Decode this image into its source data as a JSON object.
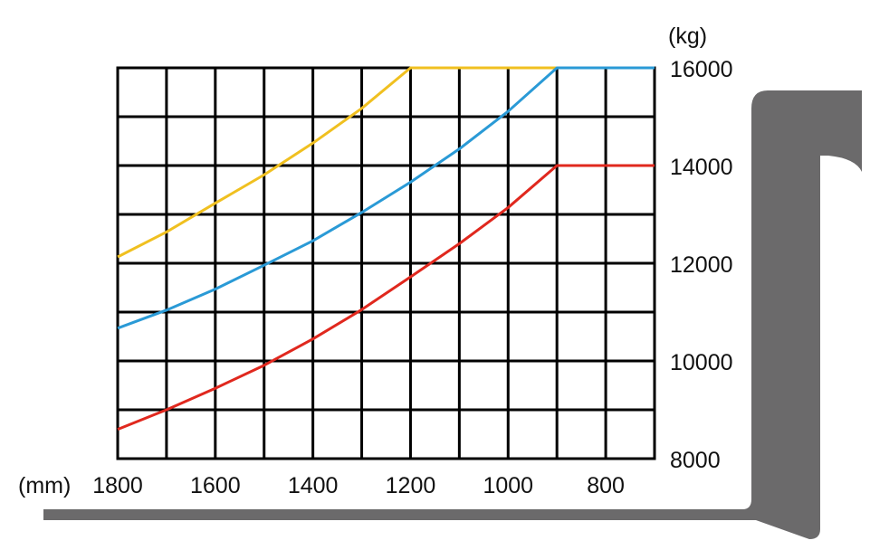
{
  "chart_data": {
    "type": "line",
    "title": "",
    "xlabel": "(mm)",
    "ylabel": "(kg)",
    "xlim": [
      1800,
      700
    ],
    "ylim": [
      8000,
      16000
    ],
    "x_ticks": [
      1800,
      1600,
      1400,
      1200,
      1000,
      800
    ],
    "y_ticks": [
      8000,
      10000,
      12000,
      14000,
      16000
    ],
    "x_grid_step": 100,
    "y_grid_step": 1000,
    "grid": true,
    "x": [
      1800,
      1700,
      1600,
      1500,
      1400,
      1300,
      1200,
      1100,
      1000,
      900,
      800,
      700
    ],
    "series": [
      {
        "name": "yellow",
        "color": "#f0c020",
        "values": [
          12130,
          12640,
          13230,
          13810,
          14460,
          15170,
          16000,
          16000,
          16000,
          16000,
          16000,
          16000
        ]
      },
      {
        "name": "blue",
        "color": "#2a9ad6",
        "values": [
          10670,
          11040,
          11470,
          11960,
          12460,
          13040,
          13660,
          14340,
          15110,
          16000,
          16000,
          16000
        ]
      },
      {
        "name": "red",
        "color": "#e0281e",
        "values": [
          8600,
          9000,
          9440,
          9910,
          10450,
          11050,
          11720,
          12400,
          13140,
          14000,
          14000,
          14000
        ]
      }
    ],
    "legend": "none",
    "decoration_color": "#6b6a6b"
  }
}
